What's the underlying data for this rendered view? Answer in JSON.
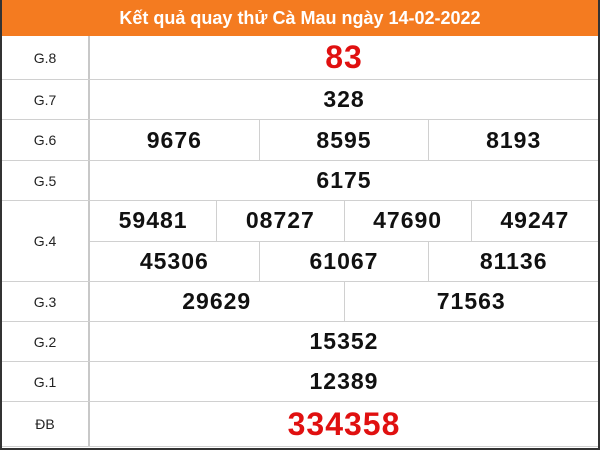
{
  "title": "Kết quả quay thử Cà Mau ngày 14-02-2022",
  "colors": {
    "header": "#f47b20",
    "highlight": "#e01010"
  },
  "prizes": [
    {
      "label": "G.8",
      "rows": [
        [
          "83"
        ]
      ],
      "highlight": true
    },
    {
      "label": "G.7",
      "rows": [
        [
          "328"
        ]
      ]
    },
    {
      "label": "G.6",
      "rows": [
        [
          "9676",
          "8595",
          "8193"
        ]
      ]
    },
    {
      "label": "G.5",
      "rows": [
        [
          "6175"
        ]
      ]
    },
    {
      "label": "G.4",
      "rows": [
        [
          "59481",
          "08727",
          "47690",
          "49247"
        ],
        [
          "45306",
          "61067",
          "81136"
        ]
      ]
    },
    {
      "label": "G.3",
      "rows": [
        [
          "29629",
          "71563"
        ]
      ]
    },
    {
      "label": "G.2",
      "rows": [
        [
          "15352"
        ]
      ]
    },
    {
      "label": "G.1",
      "rows": [
        [
          "12389"
        ]
      ]
    },
    {
      "label": "ĐB",
      "rows": [
        [
          "334358"
        ]
      ],
      "highlight": true
    }
  ]
}
